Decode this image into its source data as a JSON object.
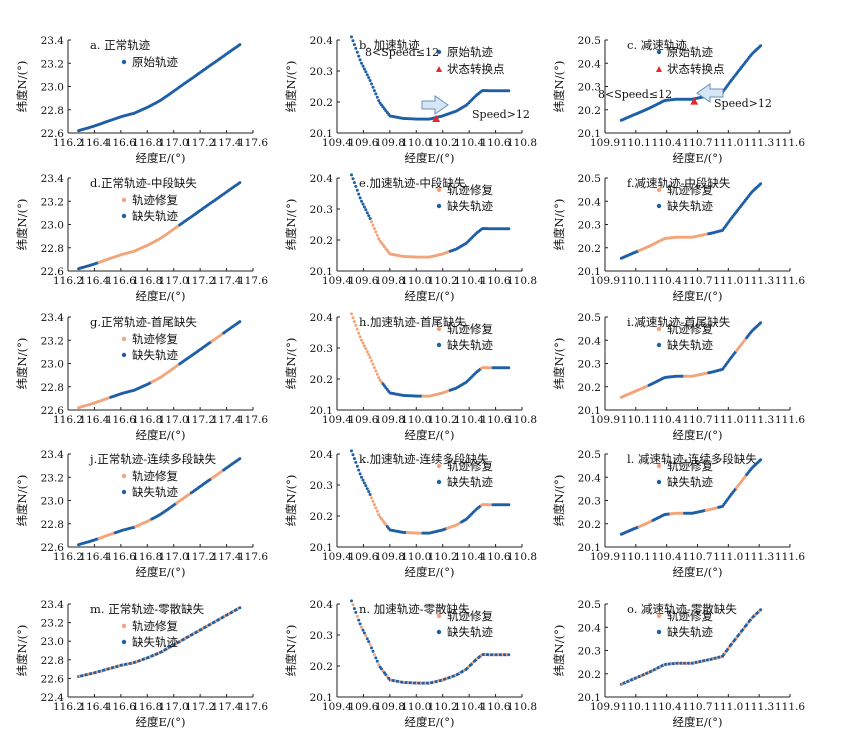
{
  "figure": {
    "xlabel": "经度E/(°)",
    "ylabel": "纬度N/(°)",
    "colors": {
      "original": "#1f5fa6",
      "gap": "#1f5fa6",
      "repair": "#f2a57a",
      "turn": "#e8262b",
      "arrow_fill": "#d6e6f5",
      "arrow_stroke": "#6a8fbd"
    }
  },
  "chart_data": [
    {
      "type": "scatter",
      "title": "a. 正常轨迹",
      "xlim": [
        116.2,
        117.6
      ],
      "ylim": [
        22.6,
        23.4
      ],
      "xticks": [
        "116.2",
        "116.4",
        "116.6",
        "116.8",
        "117.0",
        "117.2",
        "117.4",
        "117.6"
      ],
      "yticks": [
        "22.6",
        "22.8",
        "23.0",
        "23.2",
        "23.4"
      ],
      "kind": "normal",
      "mode": "orig",
      "legend": [
        "原始轨迹"
      ]
    },
    {
      "type": "scatter",
      "title": "b. 加速轨迹",
      "xlim": [
        109.4,
        110.8
      ],
      "ylim": [
        20.1,
        20.4
      ],
      "xticks": [
        "109.4",
        "109.6",
        "109.8",
        "110.0",
        "110.2",
        "110.4",
        "110.6",
        "110.8"
      ],
      "yticks": [
        "20.1",
        "20.2",
        "20.3",
        "20.4"
      ],
      "kind": "accel",
      "mode": "orig",
      "legend": [
        "原始轨迹",
        "状态转换点"
      ],
      "turn_point": {
        "x": 110.15,
        "y": 20.145
      },
      "annotations": [
        "8<Speed≤12",
        "Speed>12"
      ]
    },
    {
      "type": "scatter",
      "title": "c. 减速轨迹",
      "xlim": [
        109.9,
        111.6
      ],
      "ylim": [
        20.1,
        20.5
      ],
      "xticks": [
        "109.9",
        "110.1",
        "110.4",
        "110.7",
        "111.0",
        "111.3",
        "111.6"
      ],
      "yticks": [
        "20.1",
        "20.2",
        "20.3",
        "20.4",
        "20.5"
      ],
      "kind": "decel",
      "mode": "orig",
      "legend": [
        "原始轨迹",
        "状态转换点"
      ],
      "turn_point": {
        "x": 110.72,
        "y": 20.235
      },
      "annotations": [
        "8<Speed≤12",
        "Speed>12"
      ]
    },
    {
      "type": "scatter",
      "title": "d.正常轨迹-中段缺失",
      "xlim": [
        116.2,
        117.6
      ],
      "ylim": [
        22.6,
        23.4
      ],
      "xticks": [
        "116.2",
        "116.4",
        "116.6",
        "116.8",
        "117.0",
        "117.2",
        "117.4",
        "117.6"
      ],
      "yticks": [
        "22.6",
        "22.8",
        "23.0",
        "23.2",
        "23.4"
      ],
      "kind": "normal",
      "mode": "mid",
      "legend": [
        "轨迹修复",
        "缺失轨迹"
      ]
    },
    {
      "type": "scatter",
      "title": "e.加速轨迹-中段缺失",
      "xlim": [
        109.4,
        110.8
      ],
      "ylim": [
        20.1,
        20.4
      ],
      "xticks": [
        "109.4",
        "109.6",
        "109.8",
        "110.0",
        "110.2",
        "110.4",
        "110.6",
        "110.8"
      ],
      "yticks": [
        "20.1",
        "20.2",
        "20.3",
        "20.4"
      ],
      "kind": "accel",
      "mode": "mid",
      "legend": [
        "轨迹修复",
        "缺失轨迹"
      ]
    },
    {
      "type": "scatter",
      "title": "f.减速轨迹-中段缺失",
      "xlim": [
        109.9,
        111.6
      ],
      "ylim": [
        20.1,
        20.5
      ],
      "xticks": [
        "109.9",
        "110.1",
        "110.4",
        "110.7",
        "111.0",
        "111.3",
        "111.6"
      ],
      "yticks": [
        "20.1",
        "20.2",
        "20.3",
        "20.4",
        "20.5"
      ],
      "kind": "decel",
      "mode": "mid",
      "legend": [
        "轨迹修复",
        "缺失轨迹"
      ]
    },
    {
      "type": "scatter",
      "title": "g.正常轨迹-首尾缺失",
      "xlim": [
        116.2,
        117.6
      ],
      "ylim": [
        22.6,
        23.4
      ],
      "xticks": [
        "116.2",
        "116.4",
        "116.6",
        "116.8",
        "117.0",
        "117.2",
        "117.4",
        "117.6"
      ],
      "yticks": [
        "22.6",
        "22.8",
        "23.0",
        "23.2",
        "23.4"
      ],
      "kind": "normal",
      "mode": "ends",
      "legend": [
        "轨迹修复",
        "缺失轨迹"
      ]
    },
    {
      "type": "scatter",
      "title": "h.加速轨迹-首尾缺失",
      "xlim": [
        109.4,
        110.8
      ],
      "ylim": [
        20.1,
        20.4
      ],
      "xticks": [
        "109.4",
        "109.6",
        "109.8",
        "110.0",
        "110.2",
        "110.4",
        "110.6",
        "110.8"
      ],
      "yticks": [
        "20.1",
        "20.2",
        "20.3",
        "20.4"
      ],
      "kind": "accel",
      "mode": "ends",
      "legend": [
        "轨迹修复",
        "缺失轨迹"
      ]
    },
    {
      "type": "scatter",
      "title": "i.减速轨迹-首尾缺失",
      "xlim": [
        109.9,
        111.6
      ],
      "ylim": [
        20.1,
        20.5
      ],
      "xticks": [
        "109.9",
        "110.1",
        "110.4",
        "110.7",
        "111.0",
        "111.3",
        "111.6"
      ],
      "yticks": [
        "20.1",
        "20.2",
        "20.3",
        "20.4",
        "20.5"
      ],
      "kind": "decel",
      "mode": "ends",
      "legend": [
        "轨迹修复",
        "缺失轨迹"
      ]
    },
    {
      "type": "scatter",
      "title": "j.正常轨迹-连续多段缺失",
      "xlim": [
        116.2,
        117.6
      ],
      "ylim": [
        22.6,
        23.4
      ],
      "xticks": [
        "116.2",
        "116.4",
        "116.6",
        "116.8",
        "117.0",
        "117.2",
        "117.4",
        "117.6"
      ],
      "yticks": [
        "22.6",
        "22.8",
        "23.0",
        "23.2",
        "23.4"
      ],
      "kind": "normal",
      "mode": "multi",
      "legend": [
        "轨迹修复",
        "缺失轨迹"
      ]
    },
    {
      "type": "scatter",
      "title": "k.加速轨迹-连续多段缺失",
      "xlim": [
        109.4,
        110.8
      ],
      "ylim": [
        20.1,
        20.4
      ],
      "xticks": [
        "109.4",
        "109.6",
        "109.8",
        "110.0",
        "110.2",
        "110.4",
        "110.6",
        "110.8"
      ],
      "yticks": [
        "20.1",
        "20.2",
        "20.3",
        "20.4"
      ],
      "kind": "accel",
      "mode": "multi",
      "legend": [
        "轨迹修复",
        "缺失轨迹"
      ]
    },
    {
      "type": "scatter",
      "title": "l. 减速轨迹-连续多段缺失",
      "xlim": [
        109.9,
        111.6
      ],
      "ylim": [
        20.1,
        20.5
      ],
      "xticks": [
        "109.9",
        "110.1",
        "110.4",
        "110.7",
        "111.0",
        "111.3",
        "111.6"
      ],
      "yticks": [
        "20.1",
        "20.2",
        "20.3",
        "20.4",
        "20.5"
      ],
      "kind": "decel",
      "mode": "multi",
      "legend": [
        "轨迹修复",
        "缺失轨迹"
      ]
    },
    {
      "type": "scatter",
      "title": "m. 正常轨迹-零散缺失",
      "xlim": [
        116.2,
        117.6
      ],
      "ylim": [
        22.4,
        23.4
      ],
      "xticks": [
        "116.2",
        "116.4",
        "116.6",
        "116.8",
        "117.0",
        "117.2",
        "117.4",
        "117.6"
      ],
      "yticks": [
        "22.4",
        "22.6",
        "22.8",
        "23.0",
        "23.2",
        "23.4"
      ],
      "kind": "normal",
      "mode": "scatter",
      "legend": [
        "轨迹修复",
        "缺失轨迹"
      ]
    },
    {
      "type": "scatter",
      "title": "n. 加速轨迹-零散缺失",
      "xlim": [
        109.4,
        110.8
      ],
      "ylim": [
        20.1,
        20.4
      ],
      "xticks": [
        "109.4",
        "109.6",
        "109.8",
        "110.0",
        "110.2",
        "110.4",
        "110.6",
        "110.8"
      ],
      "yticks": [
        "20.1",
        "20.2",
        "20.3",
        "20.4"
      ],
      "kind": "accel",
      "mode": "scatter",
      "legend": [
        "轨迹修复",
        "缺失轨迹"
      ]
    },
    {
      "type": "scatter",
      "title": "o. 减速轨迹-零散缺失",
      "xlim": [
        109.9,
        111.6
      ],
      "ylim": [
        20.1,
        20.5
      ],
      "xticks": [
        "109.9",
        "110.1",
        "110.4",
        "110.7",
        "111.0",
        "111.3",
        "111.6"
      ],
      "yticks": [
        "20.1",
        "20.2",
        "20.3",
        "20.4",
        "20.5"
      ],
      "kind": "decel",
      "mode": "scatter",
      "legend": [
        "轨迹修复",
        "缺失轨迹"
      ]
    }
  ],
  "trajectories": {
    "normal": [
      [
        116.28,
        22.62
      ],
      [
        116.4,
        22.66
      ],
      [
        116.5,
        22.7
      ],
      [
        116.6,
        22.74
      ],
      [
        116.7,
        22.77
      ],
      [
        116.8,
        22.82
      ],
      [
        116.9,
        22.88
      ],
      [
        117.0,
        22.96
      ],
      [
        117.1,
        23.04
      ],
      [
        117.2,
        23.12
      ],
      [
        117.3,
        23.2
      ],
      [
        117.4,
        23.28
      ],
      [
        117.5,
        23.36
      ]
    ],
    "accel": [
      [
        109.51,
        20.41
      ],
      [
        109.58,
        20.33
      ],
      [
        109.65,
        20.27
      ],
      [
        109.72,
        20.2
      ],
      [
        109.8,
        20.155
      ],
      [
        109.9,
        20.147
      ],
      [
        110.0,
        20.145
      ],
      [
        110.1,
        20.145
      ],
      [
        110.2,
        20.155
      ],
      [
        110.3,
        20.17
      ],
      [
        110.38,
        20.19
      ],
      [
        110.45,
        20.22
      ],
      [
        110.5,
        20.237
      ],
      [
        110.6,
        20.236
      ],
      [
        110.7,
        20.236
      ]
    ],
    "decel": [
      [
        110.05,
        20.155
      ],
      [
        110.15,
        20.175
      ],
      [
        110.3,
        20.205
      ],
      [
        110.45,
        20.24
      ],
      [
        110.55,
        20.245
      ],
      [
        110.7,
        20.245
      ],
      [
        110.8,
        20.255
      ],
      [
        110.9,
        20.265
      ],
      [
        110.98,
        20.275
      ],
      [
        111.05,
        20.32
      ],
      [
        111.15,
        20.38
      ],
      [
        111.25,
        20.44
      ],
      [
        111.33,
        20.475
      ]
    ]
  }
}
